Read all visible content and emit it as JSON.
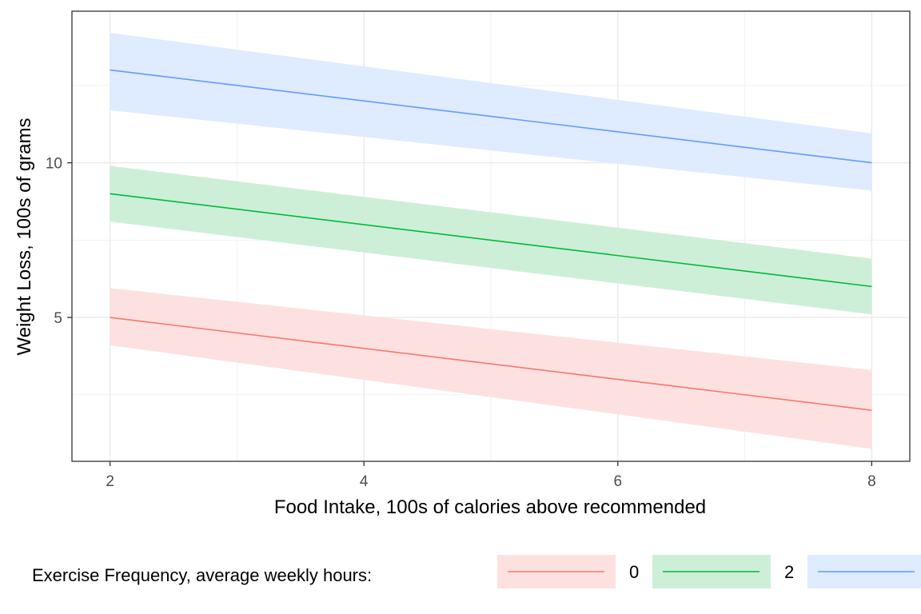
{
  "chart_data": {
    "type": "line",
    "xlabel": "Food Intake, 100s of calories above recommended",
    "ylabel": "Weight Loss, 100s of grams",
    "xlim": [
      1.7,
      8.3
    ],
    "ylim": [
      0.35,
      14.9
    ],
    "x_ticks": [
      2,
      4,
      6,
      8
    ],
    "y_ticks": [
      5,
      10
    ],
    "x_minor": [
      3,
      5,
      7
    ],
    "y_minor": [
      2.5,
      7.5,
      12.5
    ],
    "grid": true,
    "legend_position": "bottom",
    "legend_title": "Exercise Frequency, average weekly hours:",
    "series": [
      {
        "name": "0",
        "color": "#F8766D",
        "fill": "#FDE1E0",
        "x": [
          2,
          8
        ],
        "y": [
          5,
          2
        ],
        "ci_lower": [
          4.1,
          0.75
        ],
        "ci_upper": [
          5.95,
          3.3
        ]
      },
      {
        "name": "2",
        "color": "#00BA38",
        "fill": "#CDEFD7",
        "x": [
          2,
          8
        ],
        "y": [
          9,
          6
        ],
        "ci_lower": [
          8.1,
          5.1
        ],
        "ci_upper": [
          9.9,
          6.9
        ]
      },
      {
        "name": "",
        "color": "#619CFF",
        "fill": "#DFEBFF",
        "x": [
          2,
          8
        ],
        "y": [
          13,
          10
        ],
        "ci_lower": [
          11.7,
          9.1
        ],
        "ci_upper": [
          14.2,
          10.95
        ]
      }
    ]
  }
}
